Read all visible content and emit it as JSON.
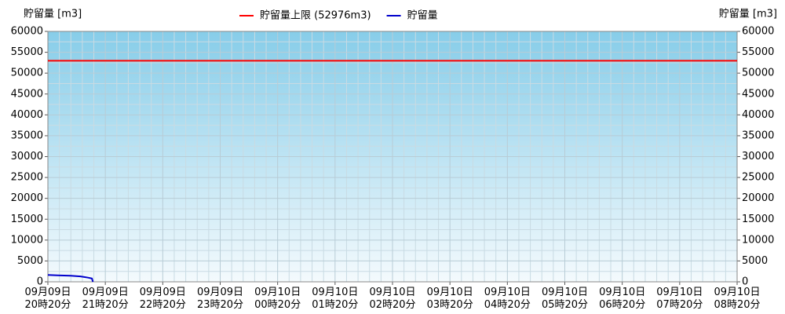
{
  "chart_data": {
    "type": "line",
    "ylabel": "貯留量 [m3]",
    "y2label": "貯留量 [m3]",
    "xlim": [
      0,
      720
    ],
    "xticks": [
      {
        "value": 0,
        "label": [
          "09月09日",
          "20時20分"
        ]
      },
      {
        "value": 60,
        "label": [
          "09月09日",
          "21時20分"
        ]
      },
      {
        "value": 120,
        "label": [
          "09月09日",
          "22時20分"
        ]
      },
      {
        "value": 180,
        "label": [
          "09月09日",
          "23時20分"
        ]
      },
      {
        "value": 240,
        "label": [
          "09月10日",
          "00時20分"
        ]
      },
      {
        "value": 300,
        "label": [
          "09月10日",
          "01時20分"
        ]
      },
      {
        "value": 360,
        "label": [
          "09月10日",
          "02時20分"
        ]
      },
      {
        "value": 420,
        "label": [
          "09月10日",
          "03時20分"
        ]
      },
      {
        "value": 480,
        "label": [
          "09月10日",
          "04時20分"
        ]
      },
      {
        "value": 540,
        "label": [
          "09月10日",
          "05時20分"
        ]
      },
      {
        "value": 600,
        "label": [
          "09月10日",
          "06時20分"
        ]
      },
      {
        "value": 660,
        "label": [
          "09月10日",
          "07時20分"
        ]
      },
      {
        "value": 720,
        "label": [
          "09月10日",
          "08時20分"
        ]
      }
    ],
    "ylim": [
      0,
      60000
    ],
    "yticks": [
      0,
      5000,
      10000,
      15000,
      20000,
      25000,
      30000,
      35000,
      40000,
      45000,
      50000,
      55000,
      60000
    ],
    "y2lim": [
      0,
      60000
    ],
    "y2ticks": [
      0,
      5000,
      10000,
      15000,
      20000,
      25000,
      30000,
      35000,
      40000,
      45000,
      50000,
      55000,
      60000
    ],
    "grid": true,
    "reference_lines": [
      {
        "name": "貯留量上限 (52976m3)",
        "color": "#ff0000",
        "value": 52976
      }
    ],
    "series": [
      {
        "name": "貯留量",
        "color": "#0000cc",
        "x": [
          0,
          10,
          24,
          34,
          38,
          42,
          46,
          47
        ],
        "values": [
          1650,
          1550,
          1450,
          1300,
          1150,
          1000,
          800,
          0
        ]
      }
    ]
  }
}
